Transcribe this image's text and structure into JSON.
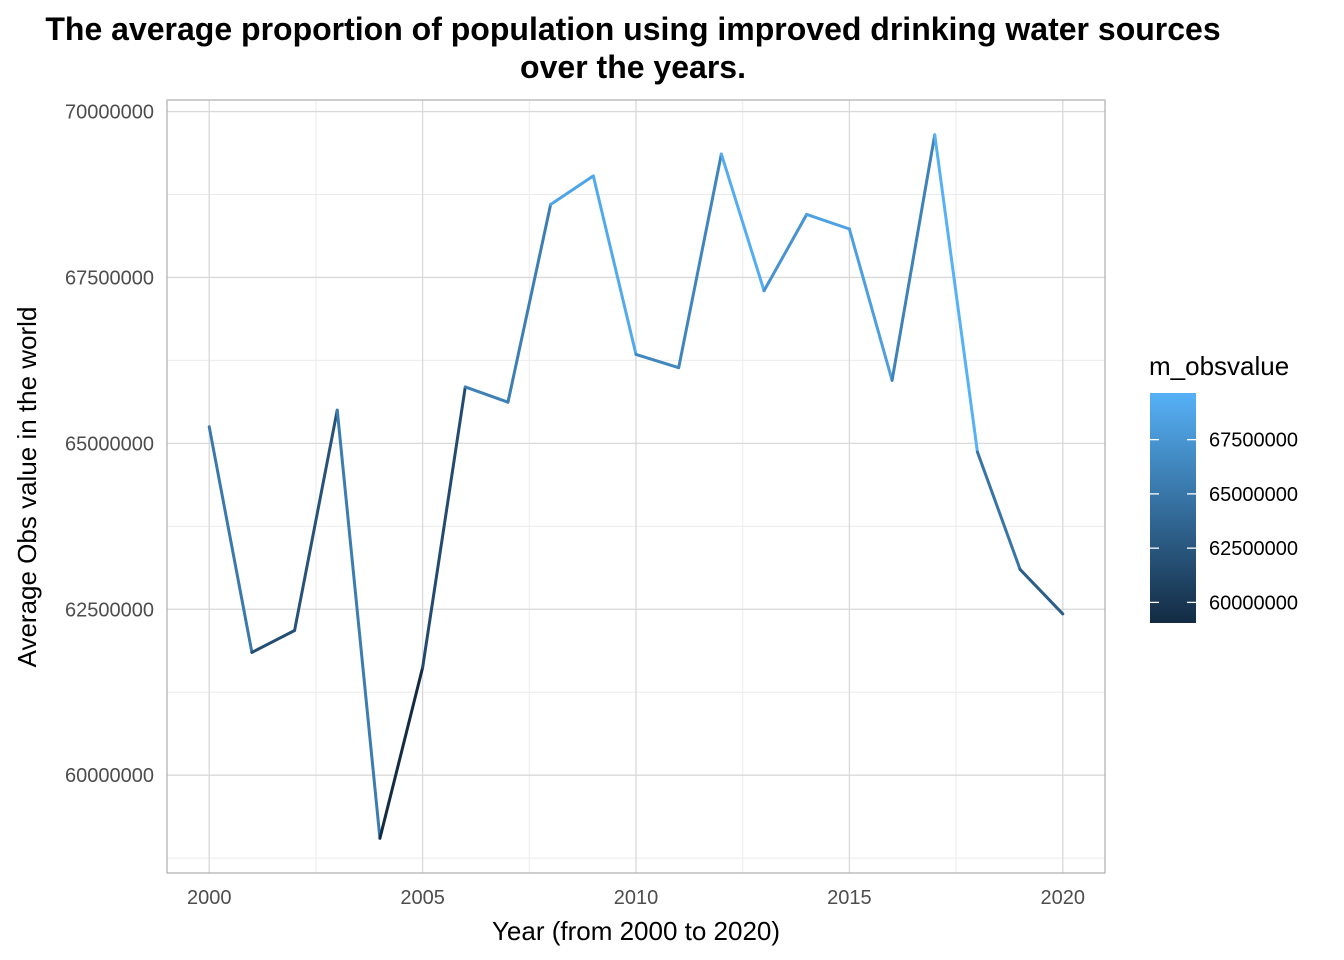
{
  "chart_data": {
    "type": "line",
    "title_line1": "The average proportion of population using improved drinking water sources",
    "title_line2": "over the years.",
    "xlabel": "Year (from 2000 to 2020)",
    "ylabel": "Average Obs value in the world",
    "x": [
      2000,
      2001,
      2002,
      2003,
      2004,
      2005,
      2006,
      2007,
      2008,
      2009,
      2010,
      2011,
      2012,
      2013,
      2014,
      2015,
      2016,
      2017,
      2018,
      2019,
      2020
    ],
    "values": [
      65250000,
      61850000,
      62180000,
      65500000,
      59050000,
      61620000,
      65850000,
      65620000,
      68600000,
      69030000,
      66340000,
      66140000,
      69360000,
      67300000,
      68450000,
      68230000,
      65950000,
      69650000,
      64870000,
      63100000,
      62430000
    ],
    "xlim": [
      2000,
      2020
    ],
    "ylim": [
      59050000,
      69650000
    ],
    "x_ticks": [
      2000,
      2005,
      2010,
      2015,
      2020
    ],
    "x_tick_labels": [
      "2000",
      "2005",
      "2010",
      "2015",
      "2020"
    ],
    "y_ticks": [
      60000000,
      62500000,
      65000000,
      67500000,
      70000000
    ],
    "y_tick_labels": [
      "60000000",
      "62500000",
      "65000000",
      "67500000",
      "70000000"
    ],
    "grid": true,
    "legend": {
      "title": "m_obsvalue",
      "placement": "right",
      "ticks": [
        60000000,
        62500000,
        65000000,
        67500000
      ],
      "tick_labels": [
        "60000000",
        "62500000",
        "65000000",
        "67500000"
      ],
      "color_low": "#132B43",
      "color_high": "#56B1F7"
    }
  }
}
